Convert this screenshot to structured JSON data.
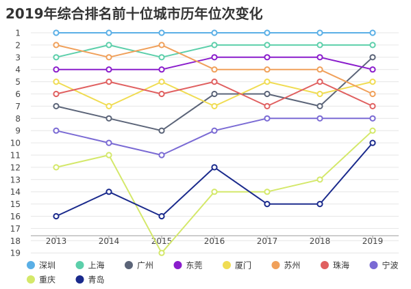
{
  "chart_data": {
    "type": "line",
    "title": "2019年综合排名前十位城市历年位次变化",
    "xlabel": "",
    "ylabel": "",
    "x": [
      "2013",
      "2014",
      "2015",
      "2016",
      "2017",
      "2018",
      "2019"
    ],
    "ylim": [
      1,
      19
    ],
    "y_inverted": true,
    "y_ticks": [
      1,
      2,
      3,
      4,
      5,
      6,
      7,
      8,
      9,
      10,
      11,
      12,
      13,
      14,
      15,
      16,
      17,
      18,
      19
    ],
    "grid": "horizontal",
    "legend_position": "bottom",
    "series": [
      {
        "name": "深圳",
        "color": "#5aafe6",
        "values": [
          1,
          1,
          1,
          1,
          1,
          1,
          1
        ]
      },
      {
        "name": "上海",
        "color": "#5ccfaa",
        "values": [
          3,
          2,
          3,
          2,
          2,
          2,
          2
        ]
      },
      {
        "name": "广州",
        "color": "#5b6478",
        "values": [
          7,
          8,
          9,
          6,
          6,
          7,
          3
        ]
      },
      {
        "name": "东莞",
        "color": "#8a1dcc",
        "values": [
          4,
          4,
          4,
          3,
          3,
          3,
          4
        ]
      },
      {
        "name": "厦门",
        "color": "#f0dc52",
        "values": [
          5,
          7,
          5,
          7,
          5,
          6,
          5
        ]
      },
      {
        "name": "苏州",
        "color": "#f0a05a",
        "values": [
          2,
          3,
          2,
          4,
          4,
          4,
          6
        ]
      },
      {
        "name": "珠海",
        "color": "#e06060",
        "values": [
          6,
          5,
          6,
          5,
          7,
          5,
          7
        ]
      },
      {
        "name": "宁波",
        "color": "#7a6ad4",
        "values": [
          9,
          10,
          11,
          9,
          8,
          8,
          8
        ]
      },
      {
        "name": "重庆",
        "color": "#d4e86a",
        "values": [
          12,
          11,
          19,
          14,
          14,
          13,
          9
        ]
      },
      {
        "name": "青岛",
        "color": "#1a2a8c",
        "values": [
          16,
          14,
          16,
          12,
          15,
          15,
          10
        ]
      }
    ]
  }
}
